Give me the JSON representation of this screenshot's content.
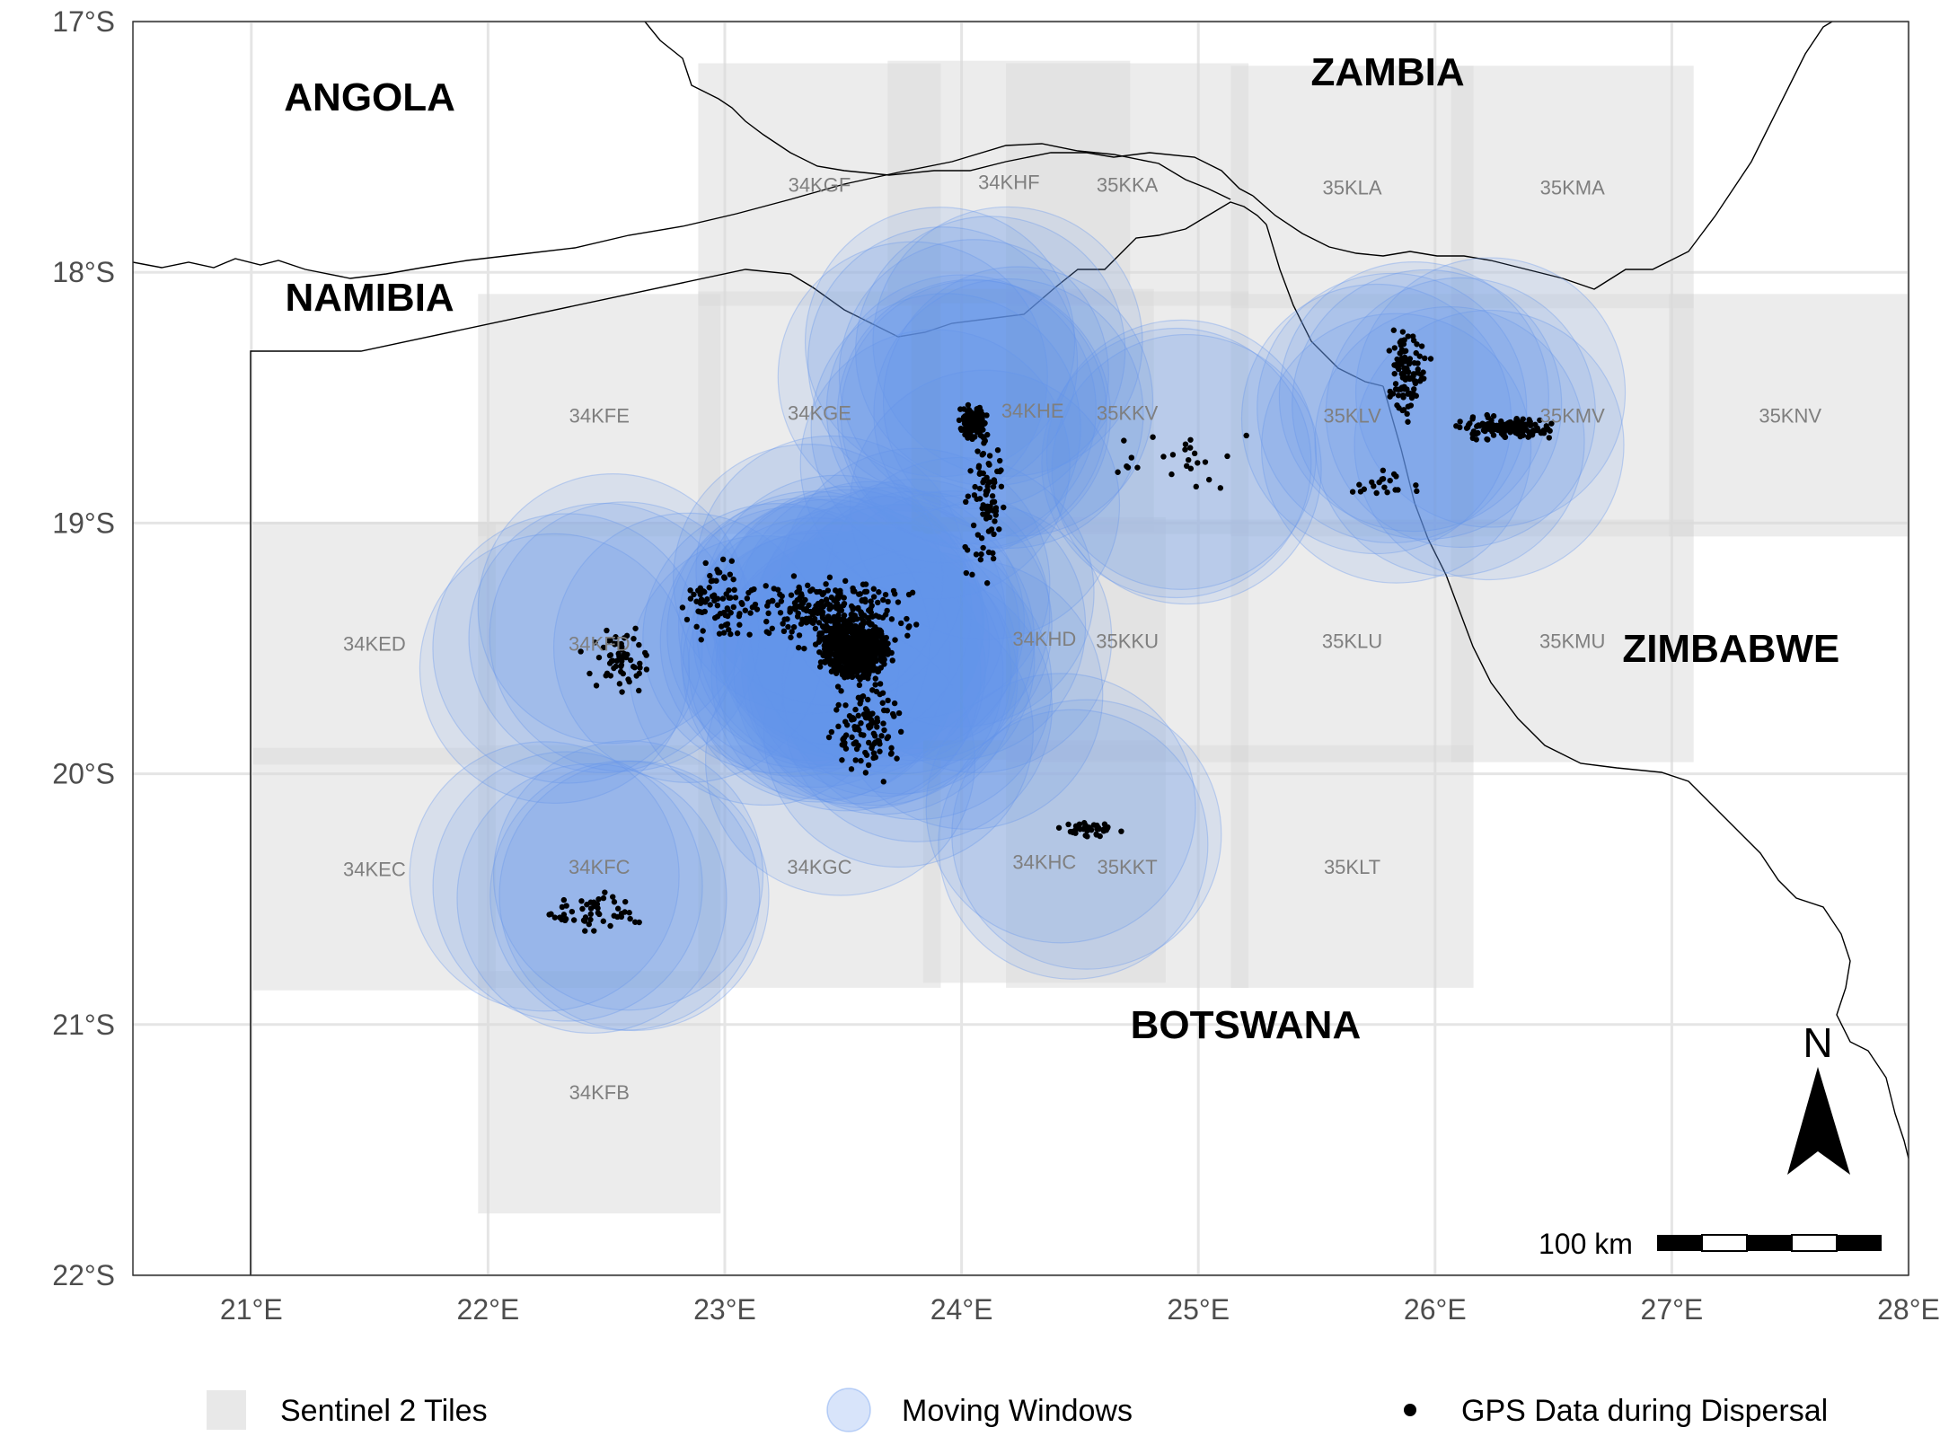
{
  "map": {
    "countries": [
      {
        "name": "ANGOLA",
        "lon": 21.5,
        "lat": -17.3
      },
      {
        "name": "NAMIBIA",
        "lon": 21.5,
        "lat": -18.1
      },
      {
        "name": "ZAMBIA",
        "lon": 25.8,
        "lat": -17.2
      },
      {
        "name": "ZIMBABWE",
        "lon": 27.25,
        "lat": -19.5
      },
      {
        "name": "BOTSWANA",
        "lon": 25.2,
        "lat": -21.0
      }
    ],
    "x_ticks": [
      "21°E",
      "22°E",
      "23°E",
      "24°E",
      "25°E",
      "26°E",
      "27°E",
      "28°E"
    ],
    "y_ticks": [
      "17°S",
      "18°S",
      "19°S",
      "20°S",
      "21°S",
      "22°S"
    ],
    "x_tick_values": [
      21,
      22,
      23,
      24,
      25,
      26,
      27,
      28
    ],
    "y_tick_values": [
      -17,
      -18,
      -19,
      -20,
      -21,
      -22
    ],
    "lon_range": [
      20.5,
      28.0
    ],
    "lat_range": [
      -22.0,
      -17.0
    ],
    "tiles": [
      {
        "name": "34KGF",
        "lon": 23.4,
        "lat": -17.65
      },
      {
        "name": "34KHF",
        "lon": 24.2,
        "lat": -17.64
      },
      {
        "name": "35KKA",
        "lon": 24.7,
        "lat": -17.65
      },
      {
        "name": "35KLA",
        "lon": 25.65,
        "lat": -17.66
      },
      {
        "name": "35KMA",
        "lon": 26.58,
        "lat": -17.66
      },
      {
        "name": "34KFE",
        "lon": 22.47,
        "lat": -18.57
      },
      {
        "name": "34KGE",
        "lon": 23.4,
        "lat": -18.56
      },
      {
        "name": "34KHE",
        "lon": 24.3,
        "lat": -18.55
      },
      {
        "name": "35KKV",
        "lon": 24.7,
        "lat": -18.56
      },
      {
        "name": "35KLV",
        "lon": 25.65,
        "lat": -18.57
      },
      {
        "name": "35KMV",
        "lon": 26.58,
        "lat": -18.57
      },
      {
        "name": "35KNV",
        "lon": 27.5,
        "lat": -18.57
      },
      {
        "name": "34KED",
        "lon": 21.52,
        "lat": -19.48
      },
      {
        "name": "34KFD",
        "lon": 22.47,
        "lat": -19.48
      },
      {
        "name": "34KHD",
        "lon": 24.35,
        "lat": -19.46
      },
      {
        "name": "35KKU",
        "lon": 24.7,
        "lat": -19.47
      },
      {
        "name": "35KLU",
        "lon": 25.65,
        "lat": -19.47
      },
      {
        "name": "35KMU",
        "lon": 26.58,
        "lat": -19.47
      },
      {
        "name": "34KEC",
        "lon": 21.52,
        "lat": -20.38
      },
      {
        "name": "34KFC",
        "lon": 22.47,
        "lat": -20.37
      },
      {
        "name": "34KGC",
        "lon": 23.4,
        "lat": -20.37
      },
      {
        "name": "34KHC",
        "lon": 24.35,
        "lat": -20.35
      },
      {
        "name": "35KKT",
        "lon": 24.7,
        "lat": -20.37
      },
      {
        "name": "35KLT",
        "lon": 25.65,
        "lat": -20.37
      },
      {
        "name": "34KFB",
        "lon": 22.47,
        "lat": -21.27
      }
    ],
    "scale_bar": {
      "label": "100 km"
    },
    "north_arrow": {
      "label": "N"
    },
    "colors": {
      "tile_fill": "#d9d9d9",
      "window_fill": "#6495ed",
      "points": "#000000",
      "grid": "#e5e5e5",
      "border": "#000000"
    }
  },
  "legend": [
    {
      "label": "Sentinel 2 Tiles",
      "symbol": "square"
    },
    {
      "label": "Moving Windows",
      "symbol": "circle"
    },
    {
      "label": "GPS Data during Dispersal",
      "symbol": "dot"
    }
  ]
}
